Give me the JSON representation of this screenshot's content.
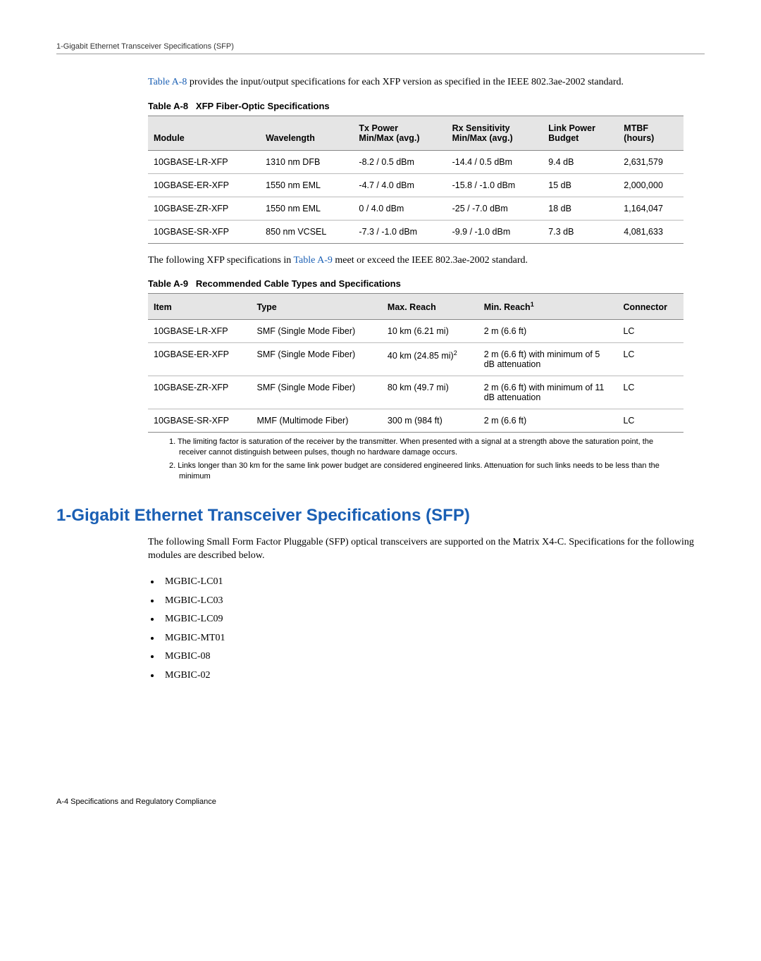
{
  "header": "1-Gigabit Ethernet Transceiver Specifications (SFP)",
  "intro1_pre": "Table A-8",
  "intro1_post": " provides the input/output specifications for each XFP version as specified in the IEEE 802.3ae-2002 standard.",
  "table8": {
    "caption_prefix": "Table A-8",
    "caption_title": "XFP Fiber-Optic Specifications",
    "headers": {
      "module": "Module",
      "wavelength": "Wavelength",
      "txpower_l1": "Tx Power",
      "txpower_l2": "Min/Max (avg.)",
      "rxsens_l1": "Rx Sensitivity",
      "rxsens_l2": "Min/Max (avg.)",
      "linkpower_l1": "Link Power",
      "linkpower_l2": "Budget",
      "mtbf_l1": "MTBF",
      "mtbf_l2": "(hours)"
    },
    "rows": [
      {
        "module": "10GBASE-LR-XFP",
        "wavelength": "1310 nm DFB",
        "tx": "-8.2 / 0.5 dBm",
        "rx": "-14.4 / 0.5 dBm",
        "lp": "9.4 dB",
        "mtbf": "2,631,579"
      },
      {
        "module": "10GBASE-ER-XFP",
        "wavelength": "1550 nm EML",
        "tx": "-4.7 / 4.0 dBm",
        "rx": "-15.8 / -1.0 dBm",
        "lp": "15 dB",
        "mtbf": "2,000,000"
      },
      {
        "module": "10GBASE-ZR-XFP",
        "wavelength": "1550 nm EML",
        "tx": "0 / 4.0 dBm",
        "rx": "-25 / -7.0 dBm",
        "lp": "18 dB",
        "mtbf": "1,164,047"
      },
      {
        "module": "10GBASE-SR-XFP",
        "wavelength": "850 nm VCSEL",
        "tx": "-7.3 / -1.0 dBm",
        "rx": "-9.9 / -1.0 dBm",
        "lp": "7.3 dB",
        "mtbf": "4,081,633"
      }
    ]
  },
  "intro2_pre": "The following XFP specifications in ",
  "intro2_link": "Table A-9",
  "intro2_post": " meet or exceed the IEEE 802.3ae-2002 standard.",
  "table9": {
    "caption_prefix": "Table A-9",
    "caption_title": "Recommended Cable Types and Specifications",
    "headers": {
      "item": "Item",
      "type": "Type",
      "max": "Max. Reach",
      "min": "Min. Reach",
      "conn": "Connector"
    },
    "rows": [
      {
        "item": "10GBASE-LR-XFP",
        "type": "SMF (Single Mode Fiber)",
        "max": "10 km (6.21 mi)",
        "min": "2 m (6.6 ft)",
        "conn": "LC",
        "maxsup": "",
        "minsuffix": ""
      },
      {
        "item": "10GBASE-ER-XFP",
        "type": "SMF (Single Mode Fiber)",
        "max": "40 km (24.85 mi)",
        "min": "2 m (6.6 ft) with minimum of 5 dB attenuation",
        "conn": "LC",
        "maxsup": "2",
        "minsuffix": ""
      },
      {
        "item": "10GBASE-ZR-XFP",
        "type": "SMF (Single Mode Fiber)",
        "max": "80 km (49.7 mi)",
        "min": "2 m (6.6 ft) with minimum of 11 dB attenuation",
        "conn": "LC",
        "maxsup": "",
        "minsuffix": ""
      },
      {
        "item": "10GBASE-SR-XFP",
        "type": "MMF (Multimode Fiber)",
        "max": "300 m (984 ft)",
        "min": "2 m (6.6 ft)",
        "conn": "LC",
        "maxsup": "",
        "minsuffix": ""
      }
    ]
  },
  "footnotes": {
    "f1": "1. The limiting factor is saturation of the receiver by the transmitter. When presented with a signal at a strength above the saturation point, the receiver cannot distinguish between pulses, though no hardware damage occurs.",
    "f2": "2. Links longer than 30 km for the same link power budget are considered engineered links. Attenuation for such links needs to be less than the minimum"
  },
  "section_title": "1-Gigabit Ethernet Transceiver Specifications (SFP)",
  "section_intro": "The following Small Form Factor Pluggable (SFP) optical transceivers are supported on the Matrix X4-C. Specifications for the following modules are described below.",
  "bullets": [
    "MGBIC-LC01",
    "MGBIC-LC03",
    "MGBIC-LC09",
    "MGBIC-MT01",
    "MGBIC-08",
    "MGBIC-02"
  ],
  "footer": "A-4   Specifications and Regulatory Compliance"
}
